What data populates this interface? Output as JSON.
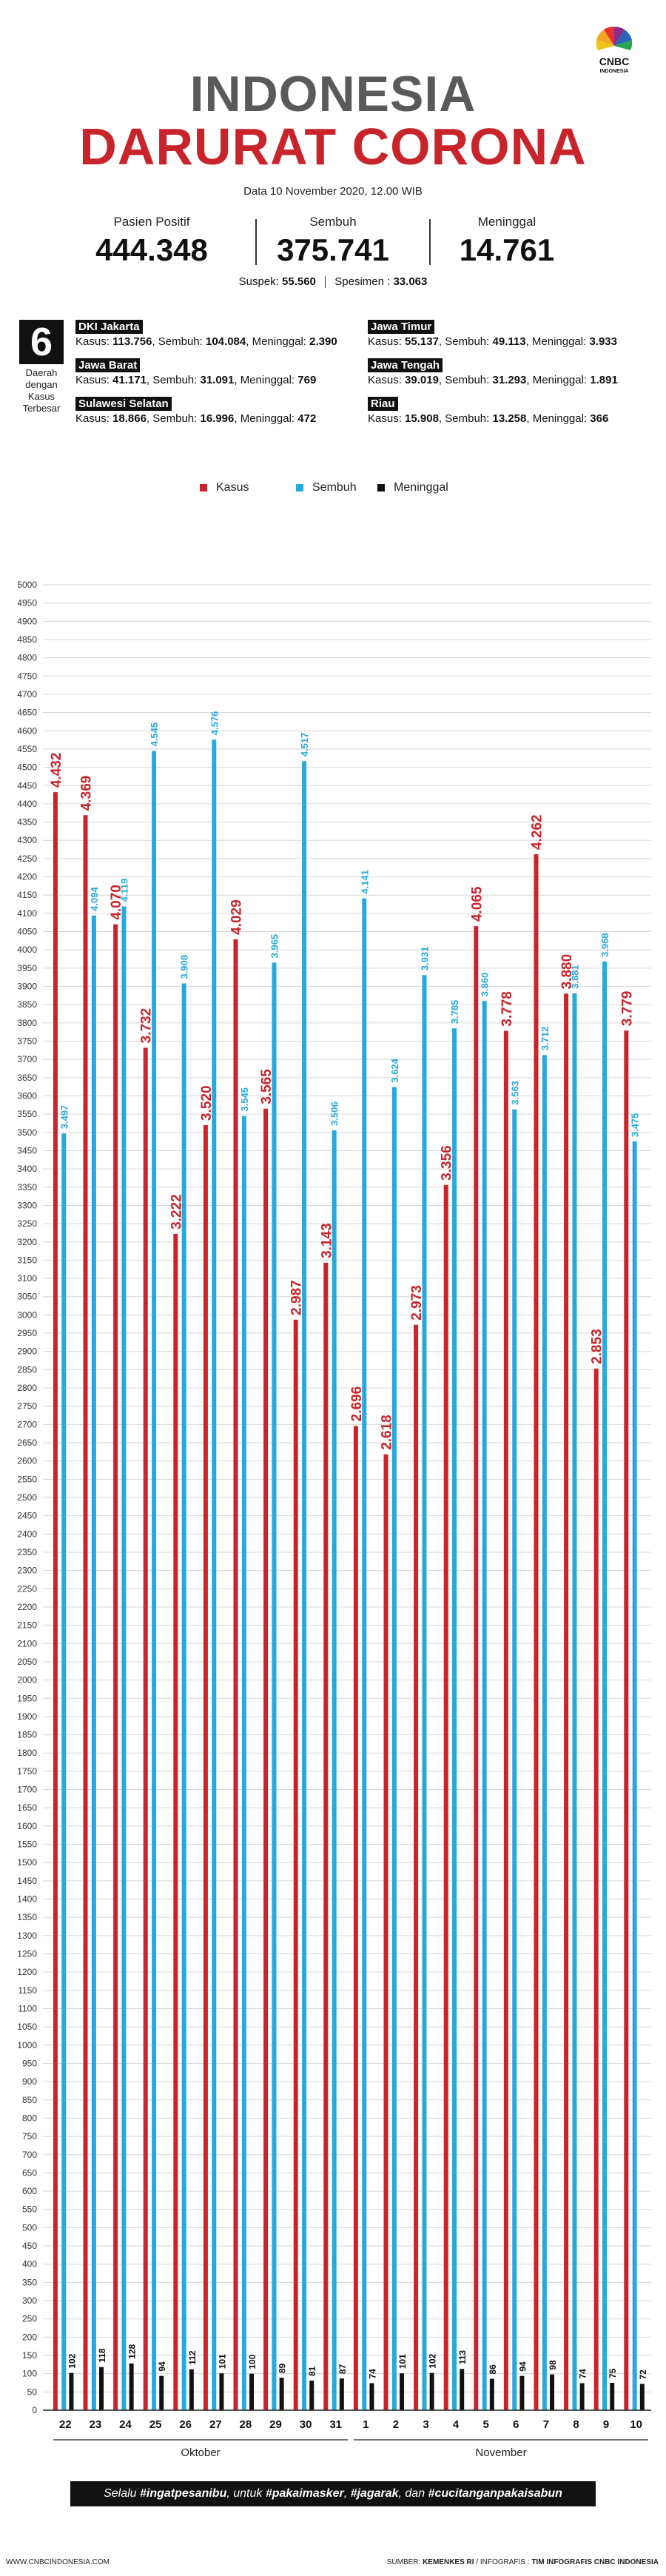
{
  "brand": {
    "logo_text": "CNBC",
    "logo_subtext": "INDONESIA",
    "colors": [
      "#f5a623",
      "#e8312f",
      "#8a2c8c",
      "#2a66b8",
      "#2aa44f",
      "#f0c419"
    ]
  },
  "header": {
    "title_line1": "INDONESIA",
    "title_line2": "DARURAT CORONA",
    "date": "Data 10 November 2020, 12.00 WIB"
  },
  "stats": [
    {
      "label": "Pasien Positif",
      "value": "444.348"
    },
    {
      "label": "Sembuh",
      "value": "375.741"
    },
    {
      "label": "Meninggal",
      "value": "14.761"
    }
  ],
  "sub_stats": {
    "suspek_label": "Suspek:",
    "suspek_value": "55.560",
    "spesimen_label": "Spesimen :",
    "spesimen_value": "33.063"
  },
  "regions_box": {
    "count": "6",
    "caption_l1": "Daerah",
    "caption_l2": "dengan",
    "caption_l3": "Kasus",
    "caption_l4": "Terbesar"
  },
  "regions": [
    {
      "name": "DKI Jakarta",
      "k_label": "Kasus:",
      "kasus": "113.756",
      "s_label": "Sembuh:",
      "sembuh": "104.084",
      "m_label": "Meninggal:",
      "meninggal": "2.390"
    },
    {
      "name": "Jawa Timur",
      "k_label": "Kasus:",
      "kasus": "55.137",
      "s_label": "Sembuh:",
      "sembuh": "49.113",
      "m_label": "Meninggal:",
      "meninggal": "3.933"
    },
    {
      "name": "Jawa Barat",
      "k_label": "Kasus:",
      "kasus": "41.171",
      "s_label": "Sembuh:",
      "sembuh": "31.091",
      "m_label": "Meninggal:",
      "meninggal": "769"
    },
    {
      "name": "Jawa Tengah",
      "k_label": "Kasus:",
      "kasus": "39.019",
      "s_label": "Sembuh:",
      "sembuh": "31.293",
      "m_label": "Meninggal:",
      "meninggal": "1.891"
    },
    {
      "name": "Sulawesi Selatan",
      "k_label": "Kasus:",
      "kasus": "18.866",
      "s_label": "Sembuh:",
      "sembuh": "16.996",
      "m_label": "Meninggal:",
      "meninggal": "472"
    },
    {
      "name": "Riau",
      "k_label": "Kasus:",
      "kasus": "15.908",
      "s_label": "Sembuh:",
      "sembuh": "13.258",
      "m_label": "Meninggal:",
      "meninggal": "366"
    }
  ],
  "chart_data": {
    "type": "bar",
    "categories": [
      "22",
      "23",
      "24",
      "25",
      "26",
      "27",
      "28",
      "29",
      "30",
      "31",
      "1",
      "2",
      "3",
      "4",
      "5",
      "6",
      "7",
      "8",
      "9",
      "10"
    ],
    "month_groups": [
      {
        "label": "Oktober",
        "count": 10
      },
      {
        "label": "November",
        "count": 10
      }
    ],
    "ylim": [
      0,
      5000
    ],
    "ytick_step": 50,
    "series": [
      {
        "name": "Kasus",
        "color": "#c8242b",
        "values": [
          4432,
          4369,
          4070,
          3732,
          3222,
          3520,
          4029,
          3565,
          2987,
          3143,
          2696,
          2618,
          2973,
          3356,
          4065,
          3778,
          4262,
          3880,
          2853,
          3779
        ],
        "labels": [
          "4.432",
          "4.369",
          "4.070",
          "3.732",
          "3.222",
          "3.520",
          "4.029",
          "3.565",
          "2.987",
          "3.143",
          "2.696",
          "2.618",
          "2.973",
          "3.356",
          "4.065",
          "3.778",
          "4.262",
          "3.880",
          "2.853",
          "3.779"
        ]
      },
      {
        "name": "Sembuh",
        "color": "#27a9dd",
        "values": [
          3497,
          4094,
          4119,
          4545,
          3908,
          4576,
          3545,
          3965,
          4517,
          3506,
          4141,
          3624,
          3931,
          3785,
          3860,
          3563,
          3712,
          3881,
          3968,
          3475
        ],
        "labels": [
          "3.497",
          "4.094",
          "4.119",
          "4.545",
          "3.908",
          "4.576",
          "3.545",
          "3.965",
          "4.517",
          "3.506",
          "4.141",
          "3.624",
          "3.931",
          "3.785",
          "3.860",
          "3.563",
          "3.712",
          "3.881",
          "3.968",
          "3.475"
        ]
      },
      {
        "name": "Meninggal",
        "color": "#111111",
        "values": [
          102,
          118,
          128,
          94,
          112,
          101,
          100,
          89,
          81,
          87,
          74,
          101,
          102,
          113,
          86,
          94,
          98,
          74,
          75,
          72
        ],
        "labels": [
          "102",
          "118",
          "128",
          "94",
          "112",
          "101",
          "100",
          "89",
          "81",
          "87",
          "74",
          "101",
          "102",
          "113",
          "86",
          "94",
          "98",
          "74",
          "75",
          "72"
        ]
      }
    ]
  },
  "footer": {
    "slogan_pre": "Selalu ",
    "tag1": "#ingatpesanibu",
    "slogan_mid1": ", untuk ",
    "tag2": "#pakaimasker",
    "sep1": ", ",
    "tag3": "#jagarak",
    "slogan_mid2": ", dan ",
    "tag4": "#cucitanganpakaisabun",
    "site": "WWW.CNBCINDONESIA.COM",
    "source_label": "SUMBER:",
    "source": "KEMENKES RI",
    "infografis_label": "/ INFOGRAFIS :",
    "infografis": "TIM INFOGRAFIS CNBC INDONESIA"
  }
}
